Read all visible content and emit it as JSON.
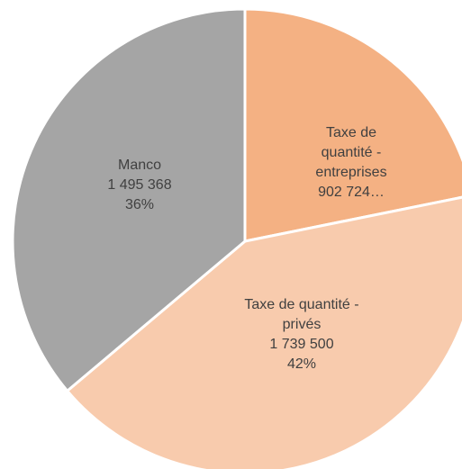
{
  "chart_data": {
    "type": "pie",
    "categories": [
      "Taxe de quantité - entreprises",
      "Taxe de quantité - privés",
      "Manco"
    ],
    "values": [
      902724,
      1739500,
      1495368
    ],
    "value_labels": [
      "902 724…",
      "1 739 500",
      "1 495 368"
    ],
    "percent_labels": [
      null,
      "42%",
      "36%"
    ],
    "colors": [
      "#f4b183",
      "#f8cbad",
      "#a5a5a5"
    ]
  }
}
